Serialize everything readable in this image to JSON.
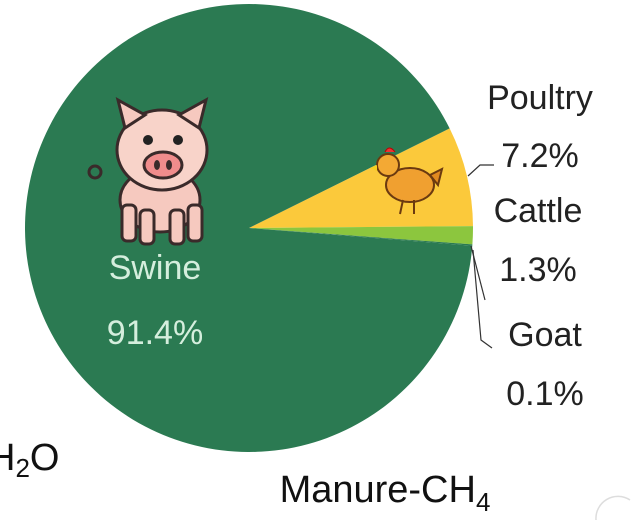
{
  "chart_data": {
    "type": "pie",
    "categories": [
      "Poultry",
      "Cattle",
      "Goat",
      "Swine"
    ],
    "values": [
      7.2,
      1.3,
      0.1,
      91.4
    ],
    "value_labels": [
      "7.2%",
      "1.3%",
      "0.1%",
      "91.4%"
    ],
    "colors": [
      "#fbc93b",
      "#8cc63e",
      "#2a7a50",
      "#2b7a52"
    ],
    "title": {
      "main": "Manure-CH",
      "sub": "4"
    },
    "side_label": {
      "main": "H",
      "sub": "2",
      "tail": "O"
    }
  }
}
